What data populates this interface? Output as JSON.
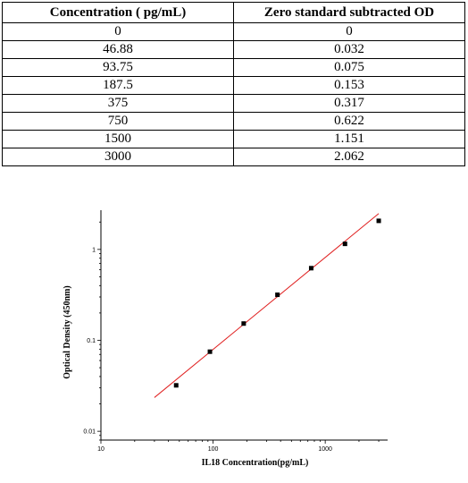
{
  "table": {
    "headers": [
      "Concentration ( pg/mL)",
      "Zero standard subtracted OD"
    ],
    "rows": [
      [
        "0",
        "0"
      ],
      [
        "46.88",
        "0.032"
      ],
      [
        "93.75",
        "0.075"
      ],
      [
        "187.5",
        "0.153"
      ],
      [
        "375",
        "0.317"
      ],
      [
        "750",
        "0.622"
      ],
      [
        "1500",
        "1.151"
      ],
      [
        "3000",
        "2.062"
      ]
    ]
  },
  "chart_data": {
    "type": "scatter",
    "xlabel": "IL18  Concentration(pg/mL)",
    "ylabel": "Optical Density (450nm)",
    "xscale": "log",
    "yscale": "log",
    "xlim": [
      10,
      3600
    ],
    "ylim": [
      0.008,
      2.7
    ],
    "xticks": [
      10,
      100,
      1000
    ],
    "xtick_labels": [
      "10",
      "100",
      "1000"
    ],
    "yticks": [
      0.01,
      0.1,
      1
    ],
    "ytick_labels": [
      "0.01",
      "0.1",
      "1"
    ],
    "points": [
      {
        "x": 46.88,
        "y": 0.032
      },
      {
        "x": 93.75,
        "y": 0.075
      },
      {
        "x": 187.5,
        "y": 0.153
      },
      {
        "x": 375,
        "y": 0.317
      },
      {
        "x": 750,
        "y": 0.622
      },
      {
        "x": 1500,
        "y": 1.151
      },
      {
        "x": 3000,
        "y": 2.062
      }
    ],
    "fit_line": {
      "x": [
        30,
        3000
      ],
      "y": [
        0.0235,
        2.48
      ]
    },
    "colors": {
      "points": "#000000",
      "fit": "#e02020",
      "axis": "#000000"
    }
  }
}
